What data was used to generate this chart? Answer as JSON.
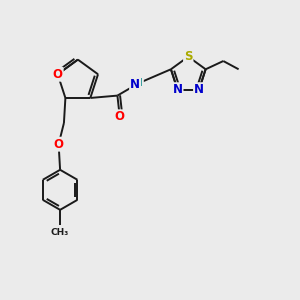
{
  "bg_color": "#ebebeb",
  "bond_color": "#1a1a1a",
  "bond_width": 1.4,
  "atom_colors": {
    "O": "#ff0000",
    "N": "#0000cc",
    "S": "#aaaa00",
    "H": "#008888",
    "C": "#1a1a1a"
  },
  "font_size": 8.5,
  "figsize": [
    3.0,
    3.0
  ],
  "dpi": 100
}
